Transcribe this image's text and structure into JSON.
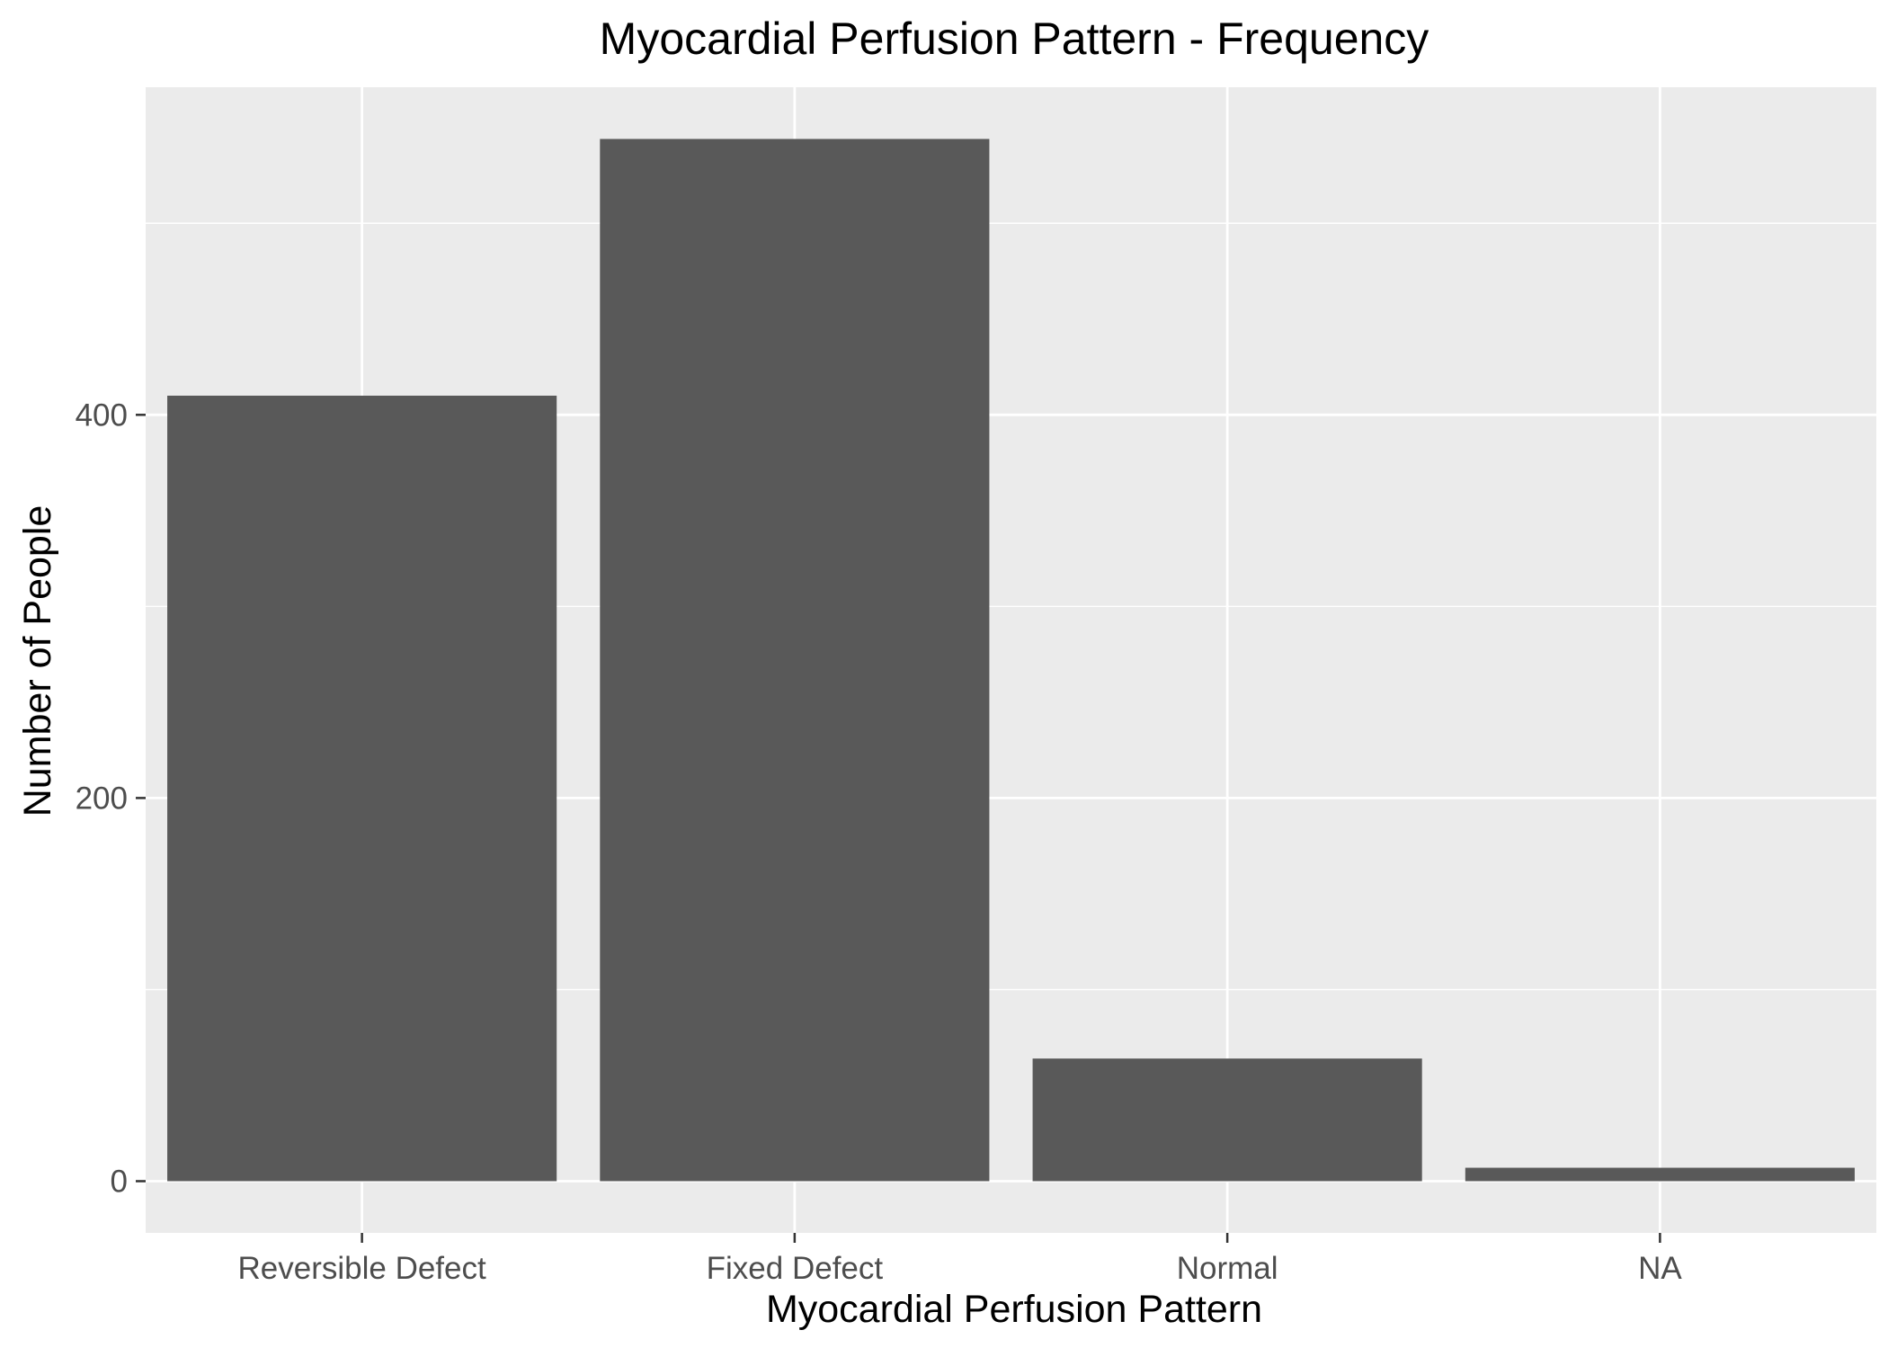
{
  "chart_data": {
    "type": "bar",
    "title": "Myocardial Perfusion Pattern - Frequency",
    "xlabel": "Myocardial Perfusion Pattern",
    "ylabel": "Number of People",
    "categories": [
      "Reversible Defect",
      "Fixed Defect",
      "Normal",
      "NA"
    ],
    "values": [
      410,
      544,
      64,
      7
    ],
    "ylim": [
      -27,
      571
    ],
    "yticks": [
      0,
      200,
      400
    ],
    "yticklabels": [
      "0",
      "200",
      "400"
    ],
    "grid": true,
    "colors": {
      "panel_background": "#ebebeb",
      "grid_line": "#ffffff",
      "bar_fill": "#595959",
      "tick_mark": "#333333",
      "tick_text": "#4d4d4d",
      "text": "#000000"
    }
  }
}
